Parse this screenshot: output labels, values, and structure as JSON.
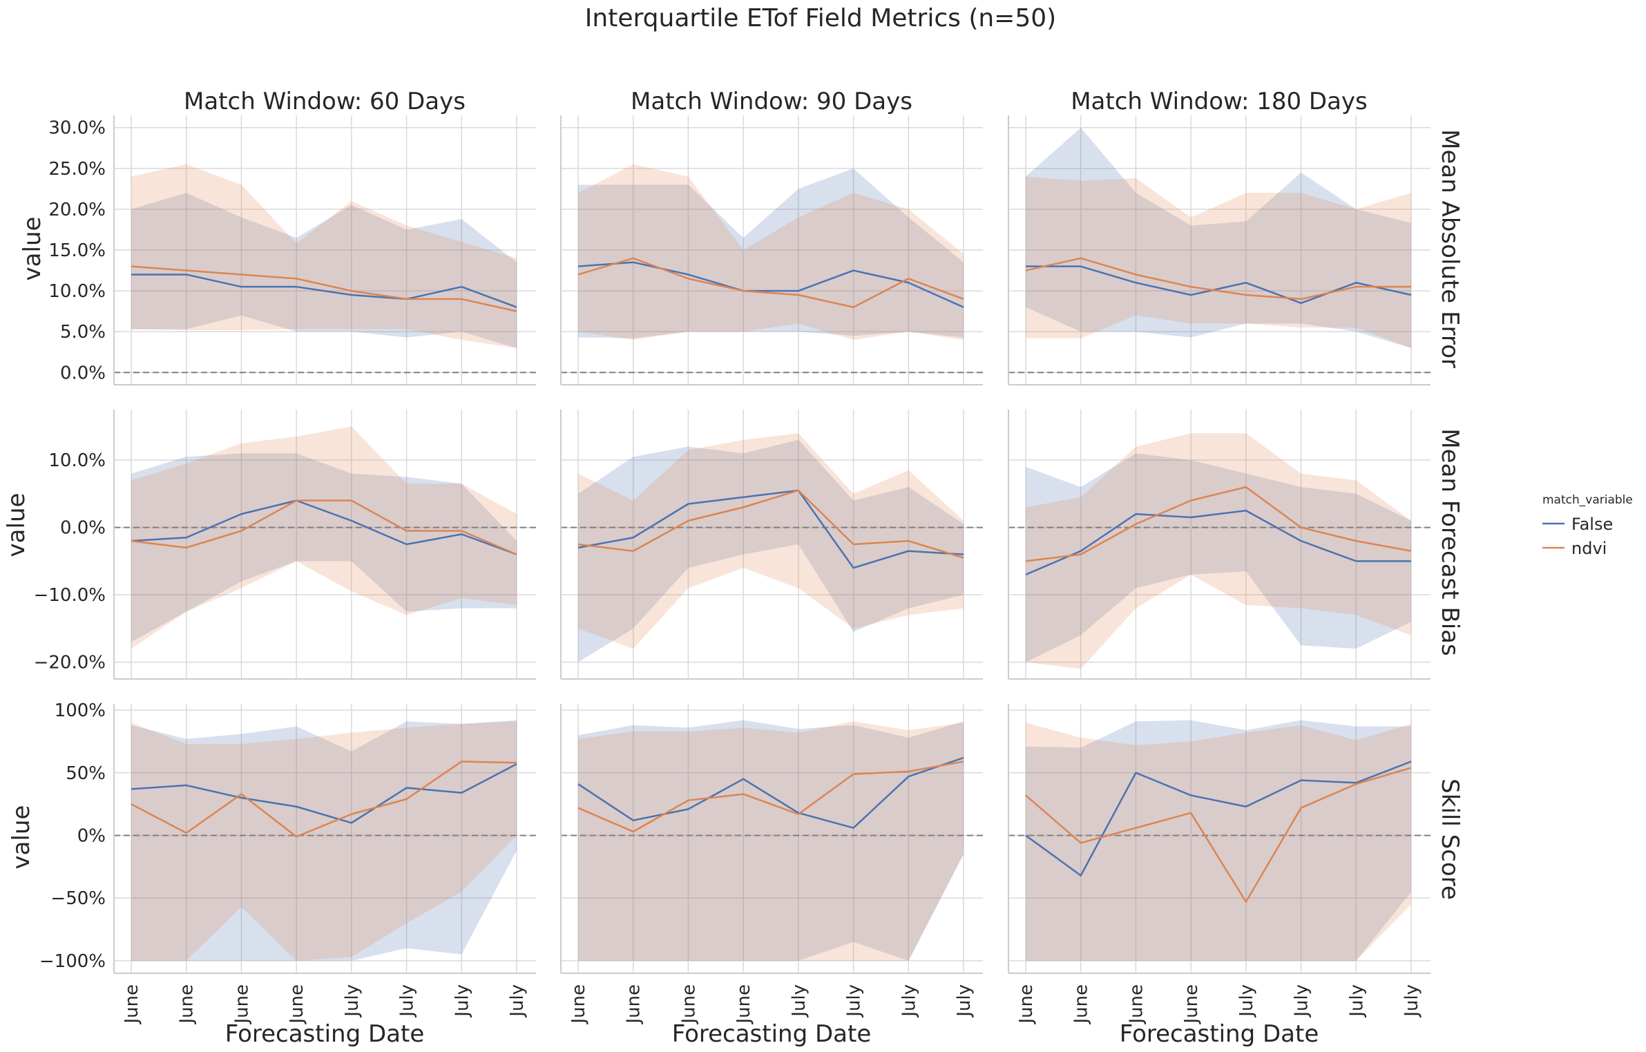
{
  "figure": {
    "title": "Interquartile ETof Field Metrics (n=50)",
    "legend_title": "match_variable",
    "legend_placement": "right"
  },
  "colors": {
    "False": "#4c72b0",
    "ndvi": "#dd8452",
    "grid": "#d9d9d9",
    "zero_line": "#7f7f7f"
  },
  "chart_data": {
    "type": "line",
    "layout": "facet-grid 3 rows x 3 columns with shaded interquartile bands",
    "grid": true,
    "x_tick_labels": [
      "June",
      "June",
      "June",
      "June",
      "July",
      "July",
      "July",
      "July"
    ],
    "xlabel": "Forecasting Date",
    "ylabel": "value",
    "column_titles": [
      "Match Window: 60 Days",
      "Match Window: 90 Days",
      "Match Window: 180 Days"
    ],
    "row_titles": [
      "Mean Absolute Error",
      "Mean Forecast Bias",
      "Skill Score"
    ],
    "rows": [
      {
        "ylim": [
          -1.5,
          31.5
        ],
        "yticks": [
          0,
          5,
          10,
          15,
          20,
          25,
          30
        ],
        "ytick_labels": [
          "0.0%",
          "5.0%",
          "10.0%",
          "15.0%",
          "20.0%",
          "25.0%",
          "30.0%"
        ],
        "panels": [
          {
            "series": [
              {
                "name": "False",
                "values": [
                  12,
                  12,
                  10.5,
                  10.5,
                  9.5,
                  9,
                  10.5,
                  8
                ],
                "q25": [
                  5.3,
                  5.3,
                  7,
                  5,
                  5,
                  4.3,
                  5,
                  3
                ],
                "q75": [
                  20,
                  22,
                  19,
                  16.5,
                  20.5,
                  17.5,
                  18.8,
                  13.5
                ]
              },
              {
                "name": "ndvi",
                "values": [
                  13,
                  12.5,
                  12,
                  11.5,
                  10,
                  9,
                  9,
                  7.5
                ],
                "q25": [
                  5.3,
                  5.2,
                  5.2,
                  5.3,
                  5.3,
                  5.3,
                  4,
                  3
                ],
                "q75": [
                  24,
                  25.5,
                  23,
                  15.8,
                  21,
                  18,
                  16,
                  14
                ]
              }
            ]
          },
          {
            "series": [
              {
                "name": "False",
                "values": [
                  13,
                  13.5,
                  12,
                  10,
                  10,
                  12.5,
                  11,
                  8
                ],
                "q25": [
                  4.3,
                  4.2,
                  5,
                  5,
                  5,
                  4.5,
                  5,
                  4.3
                ],
                "q75": [
                  23,
                  23,
                  23,
                  16.5,
                  22.5,
                  25,
                  19,
                  13.5
                ]
              },
              {
                "name": "ndvi",
                "values": [
                  12,
                  14,
                  11.5,
                  10,
                  9.5,
                  8,
                  11.5,
                  9
                ],
                "q25": [
                  5,
                  4,
                  5,
                  5,
                  6,
                  4,
                  5,
                  4
                ],
                "q75": [
                  22,
                  25.5,
                  24,
                  15,
                  19,
                  22,
                  20,
                  14.5
                ]
              }
            ]
          },
          {
            "series": [
              {
                "name": "False",
                "values": [
                  13,
                  13,
                  11,
                  9.5,
                  11,
                  8.5,
                  11,
                  9.5
                ],
                "q25": [
                  8,
                  5,
                  5,
                  4.3,
                  6,
                  6,
                  5,
                  3
                ],
                "q75": [
                  24,
                  30,
                  22,
                  18,
                  18.5,
                  24.5,
                  20,
                  18.3
                ]
              },
              {
                "name": "ndvi",
                "values": [
                  12.5,
                  14,
                  12,
                  10.5,
                  9.5,
                  9,
                  10.5,
                  10.5
                ],
                "q25": [
                  4.2,
                  4.2,
                  7,
                  6,
                  6,
                  5.5,
                  5.5,
                  3
                ],
                "q75": [
                  24,
                  23.5,
                  23.8,
                  19,
                  22,
                  22,
                  20,
                  22
                ]
              }
            ]
          }
        ]
      },
      {
        "ylim": [
          -22.5,
          17.5
        ],
        "yticks": [
          -20,
          -10,
          0,
          10
        ],
        "ytick_labels": [
          "−20.0%",
          "−10.0%",
          "0.0%",
          "10.0%"
        ],
        "panels": [
          {
            "series": [
              {
                "name": "False",
                "values": [
                  -2,
                  -1.5,
                  2,
                  4,
                  1,
                  -2.5,
                  -1,
                  -4
                ],
                "q25": [
                  -17,
                  -12.5,
                  -8,
                  -5,
                  -5,
                  -12.5,
                  -12,
                  -12
                ],
                "q75": [
                  8,
                  10.5,
                  11,
                  11,
                  8,
                  7.5,
                  6.5,
                  -2
                ]
              },
              {
                "name": "ndvi",
                "values": [
                  -2,
                  -3,
                  -0.5,
                  4,
                  4,
                  -0.5,
                  -0.5,
                  -4
                ],
                "q25": [
                  -18,
                  -12.5,
                  -9,
                  -5,
                  -9.5,
                  -13,
                  -10.5,
                  -11.5
                ],
                "q75": [
                  7,
                  9.5,
                  12.5,
                  13.5,
                  15,
                  6.5,
                  6.5,
                  2
                ]
              }
            ]
          },
          {
            "series": [
              {
                "name": "False",
                "values": [
                  -3,
                  -1.5,
                  3.5,
                  4.5,
                  5.5,
                  -6,
                  -3.5,
                  -4
                ],
                "q25": [
                  -20,
                  -15,
                  -6,
                  -4,
                  -2.5,
                  -15.5,
                  -12,
                  -10
                ],
                "q75": [
                  5,
                  10.5,
                  12,
                  11,
                  13,
                  4,
                  6,
                  0.5
                ]
              },
              {
                "name": "ndvi",
                "values": [
                  -2.5,
                  -3.5,
                  1,
                  3,
                  5.5,
                  -2.5,
                  -2,
                  -4.5
                ],
                "q25": [
                  -15,
                  -18,
                  -9,
                  -6,
                  -9,
                  -15,
                  -13,
                  -12
                ],
                "q75": [
                  8,
                  4,
                  11.5,
                  13,
                  14,
                  5,
                  8.5,
                  1
                ]
              }
            ]
          },
          {
            "series": [
              {
                "name": "False",
                "values": [
                  -7,
                  -3.5,
                  2,
                  1.5,
                  2.5,
                  -2,
                  -5,
                  -5
                ],
                "q25": [
                  -20,
                  -16,
                  -9,
                  -7,
                  -6.5,
                  -17.5,
                  -18,
                  -14
                ],
                "q75": [
                  9,
                  6,
                  11,
                  10,
                  8,
                  6,
                  5,
                  1
                ]
              },
              {
                "name": "ndvi",
                "values": [
                  -5,
                  -4,
                  0.5,
                  4,
                  6,
                  0,
                  -2,
                  -3.5
                ],
                "q25": [
                  -20,
                  -21,
                  -12,
                  -7,
                  -11.5,
                  -12,
                  -13,
                  -16
                ],
                "q75": [
                  3,
                  4.5,
                  12,
                  14,
                  14,
                  8,
                  7,
                  1
                ]
              }
            ]
          }
        ]
      },
      {
        "ylim": [
          -110,
          105
        ],
        "yticks": [
          -100,
          -50,
          0,
          50,
          100
        ],
        "ytick_labels": [
          "−100%",
          "−50%",
          "0%",
          "50%",
          "100%"
        ],
        "panels": [
          {
            "series": [
              {
                "name": "False",
                "values": [
                  37,
                  40,
                  30,
                  23,
                  10,
                  38,
                  34,
                  57
                ],
                "q25": [
                  -100,
                  -100,
                  -100,
                  -100,
                  -100,
                  -90,
                  -95,
                  -12
                ],
                "q75": [
                  88,
                  77,
                  81,
                  87,
                  67,
                  91,
                  89,
                  92
                ]
              },
              {
                "name": "ndvi",
                "values": [
                  25,
                  2,
                  33,
                  -1,
                  17,
                  29,
                  59,
                  58
                ],
                "q25": [
                  -100,
                  -100,
                  -57,
                  -100,
                  -97,
                  -70,
                  -45,
                  0
                ],
                "q75": [
                  90,
                  73,
                  73,
                  77,
                  82,
                  86,
                  89,
                  91
                ]
              }
            ]
          },
          {
            "series": [
              {
                "name": "False",
                "values": [
                  41,
                  12,
                  21,
                  45,
                  18,
                  6,
                  47,
                  62
                ],
                "q25": [
                  -100,
                  -100,
                  -100,
                  -100,
                  -100,
                  -85,
                  -100,
                  -15
                ],
                "q75": [
                  80,
                  88,
                  86,
                  92,
                  85,
                  88,
                  78,
                  91
                ]
              },
              {
                "name": "ndvi",
                "values": [
                  22,
                  3,
                  28,
                  33,
                  17,
                  49,
                  51,
                  59
                ],
                "q25": [
                  -100,
                  -100,
                  -100,
                  -100,
                  -100,
                  -100,
                  -100,
                  -15
                ],
                "q75": [
                  77,
                  83,
                  83,
                  86,
                  82,
                  91,
                  84,
                  90
                ]
              }
            ]
          },
          {
            "series": [
              {
                "name": "False",
                "values": [
                  0,
                  -32,
                  50,
                  32,
                  23,
                  44,
                  42,
                  59
                ],
                "q25": [
                  -100,
                  -100,
                  -100,
                  -100,
                  -100,
                  -100,
                  -100,
                  -45
                ],
                "q75": [
                  71,
                  70,
                  91,
                  92,
                  84,
                  92,
                  87,
                  87
                ]
              },
              {
                "name": "ndvi",
                "values": [
                  32,
                  -6,
                  6,
                  18,
                  -53,
                  22,
                  41,
                  54
                ],
                "q25": [
                  -100,
                  -100,
                  -100,
                  -100,
                  -100,
                  -100,
                  -100,
                  -55
                ],
                "q75": [
                  90,
                  78,
                  72,
                  75,
                  82,
                  88,
                  76,
                  89
                ]
              }
            ]
          }
        ]
      }
    ]
  }
}
